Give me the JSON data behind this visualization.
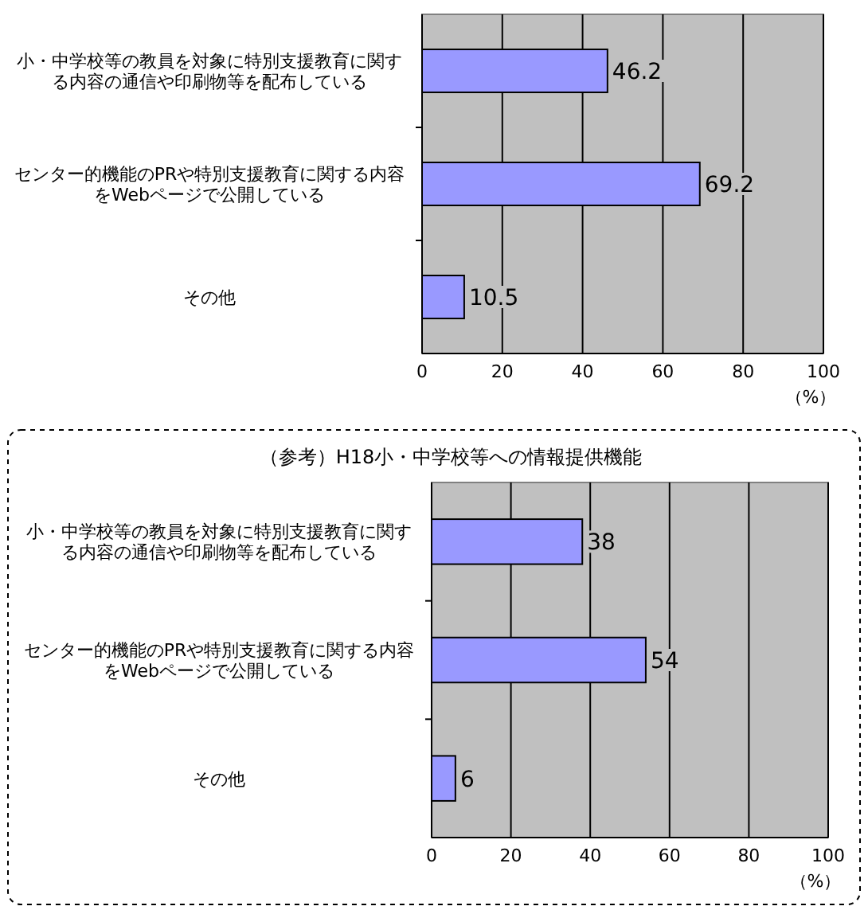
{
  "chart_data": [
    {
      "type": "bar",
      "orientation": "horizontal",
      "categories": [
        "小・中学校等の教員を対象に特別支援教育に関する内容の通信や印刷物等を配布している",
        "センター的機能のPRや特別支援教育に関する内容をWebページで公開している",
        "その他"
      ],
      "values": [
        46.2,
        69.2,
        10.5
      ],
      "color": "#9999ff",
      "xlim": [
        0,
        100
      ],
      "xticks": [
        0,
        20,
        40,
        60,
        80,
        100
      ],
      "xlabel": "（%）",
      "grid": "x",
      "data_labels": true
    },
    {
      "type": "bar",
      "orientation": "horizontal",
      "title": "（参考）H18小・中学校等への情報提供機能",
      "categories": [
        "小・中学校等の教員を対象に特別支援教育に関する内容の通信や印刷物等を配布している",
        "センター的機能のPRや特別支援教育に関する内容をWebページで公開している",
        "その他"
      ],
      "values": [
        38,
        54,
        6
      ],
      "data_labels": true,
      "color": "#9999ff",
      "xlim": [
        0,
        100
      ],
      "xticks": [
        0,
        20,
        40,
        60,
        80,
        100
      ],
      "xlabel": "（%）",
      "grid": "x"
    }
  ]
}
